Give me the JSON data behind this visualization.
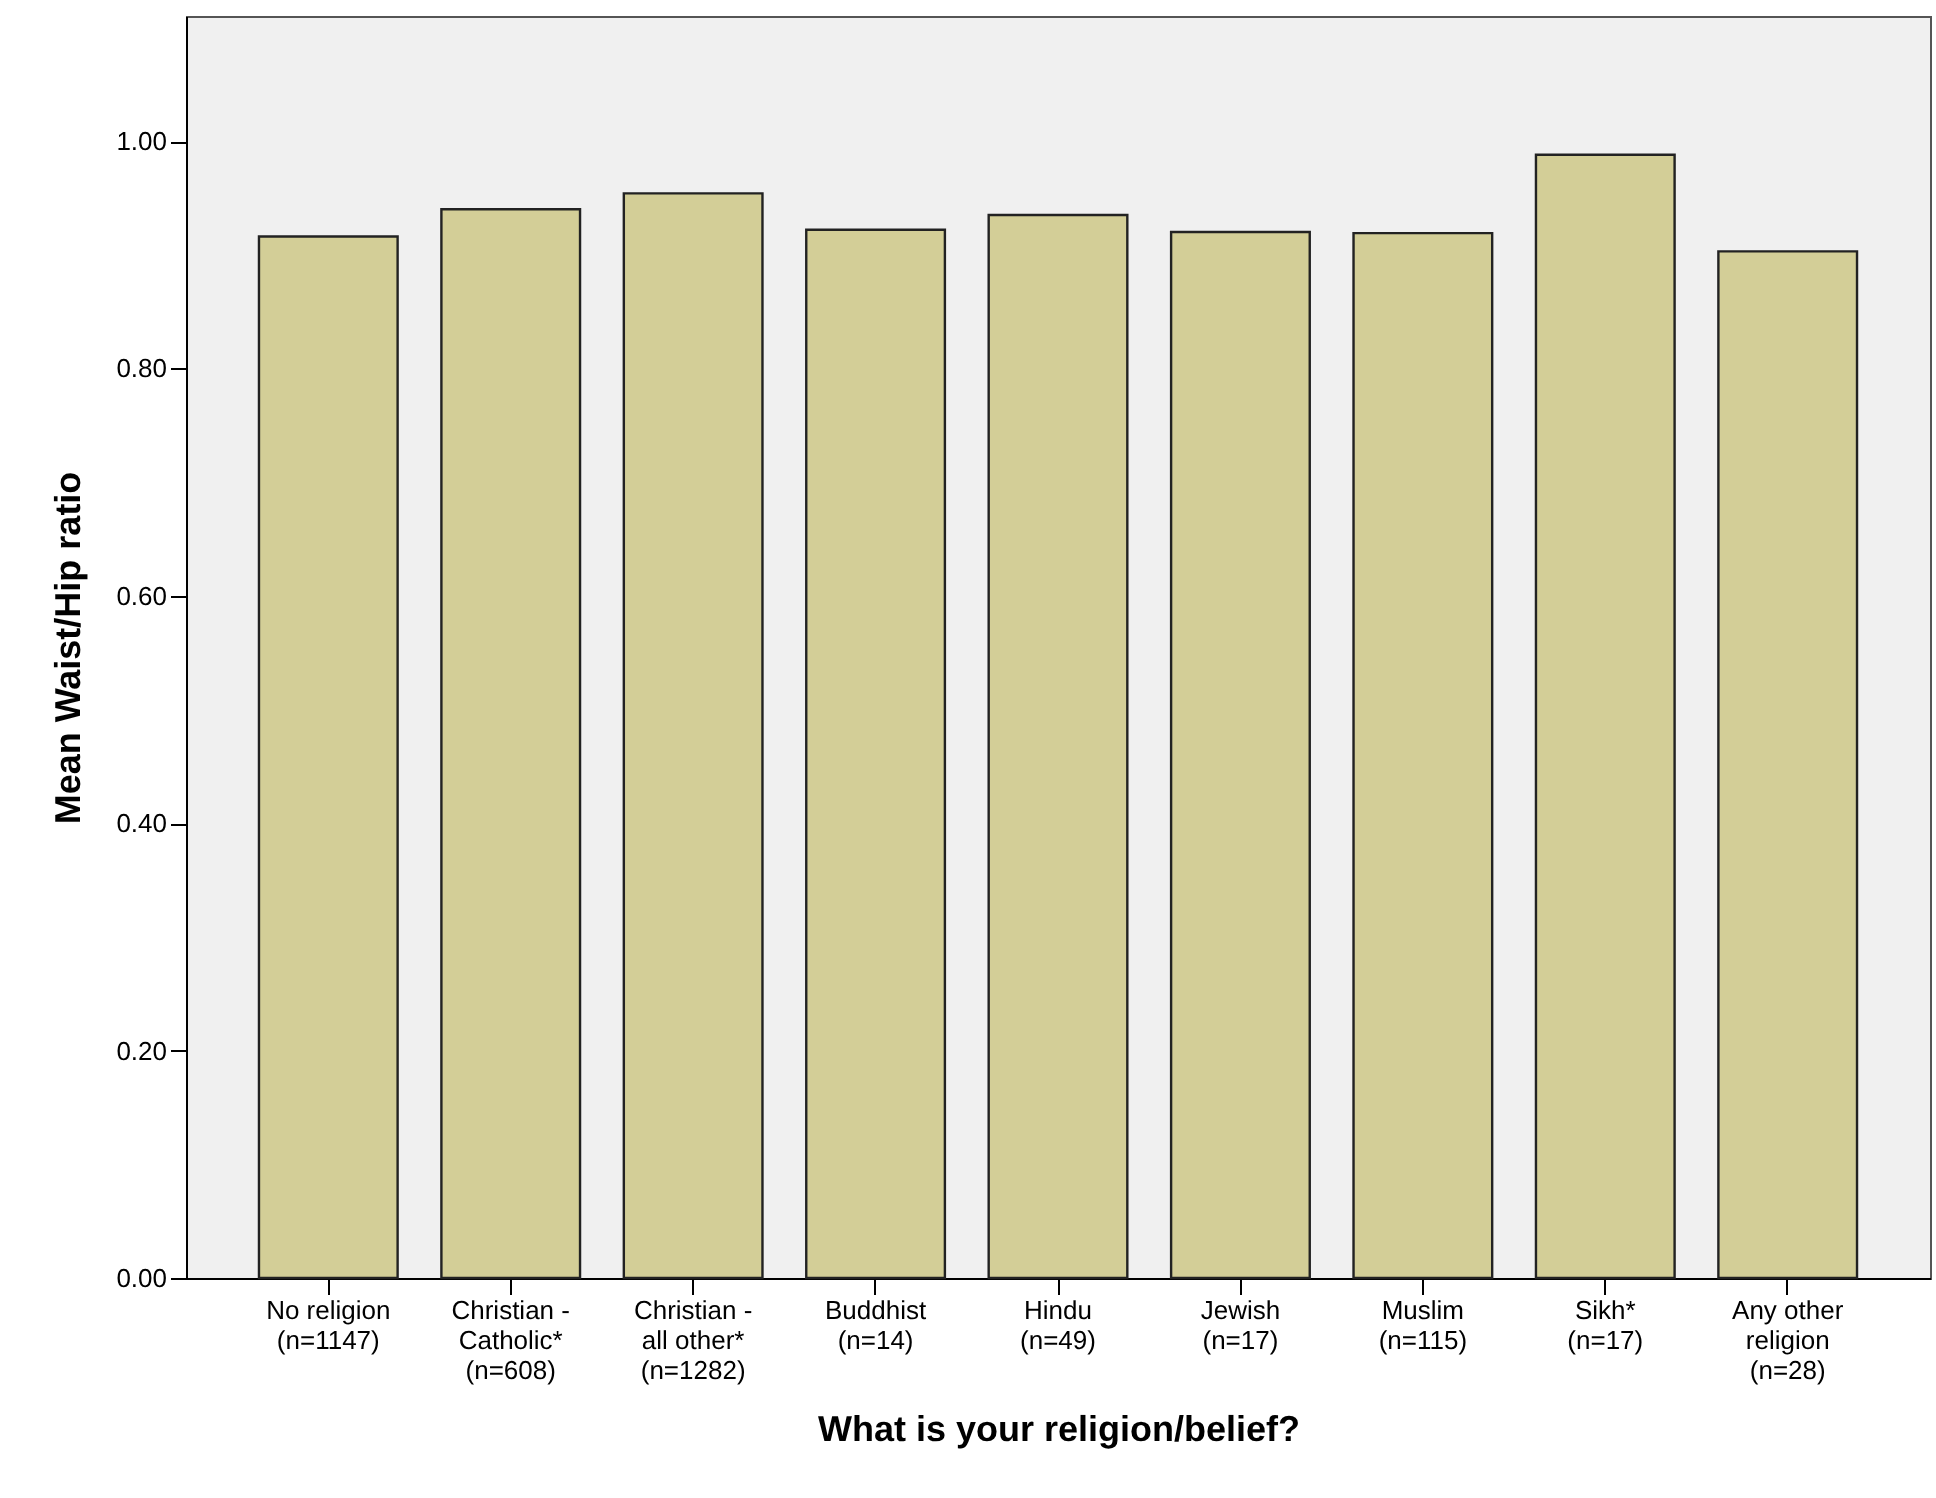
{
  "chart_data": {
    "type": "bar",
    "xlabel": "What is your religion/belief?",
    "ylabel": "Mean Waist/Hip ratio",
    "categories": [
      "No religion\n(n=1147)",
      "Christian -\nCatholic*\n(n=608)",
      "Christian -\nall other*\n(n=1282)",
      "Buddhist\n(n=14)",
      "Hindu\n(n=49)",
      "Jewish\n(n=17)",
      "Muslim\n(n=115)",
      "Sikh*\n(n=17)",
      "Any other\nreligion\n(n=28)"
    ],
    "values": [
      0.916,
      0.94,
      0.954,
      0.922,
      0.935,
      0.92,
      0.919,
      0.988,
      0.903
    ],
    "color": "#d3ce97",
    "ylim": [
      0,
      1.11
    ],
    "yticks": [
      {
        "value": 0,
        "label": "0.00"
      },
      {
        "value": 0.2,
        "label": "0.20"
      },
      {
        "value": 0.4,
        "label": "0.40"
      },
      {
        "value": 0.6,
        "label": "0.60"
      },
      {
        "value": 0.8,
        "label": "0.80"
      },
      {
        "value": 1,
        "label": "1.00"
      }
    ],
    "grid": false
  }
}
